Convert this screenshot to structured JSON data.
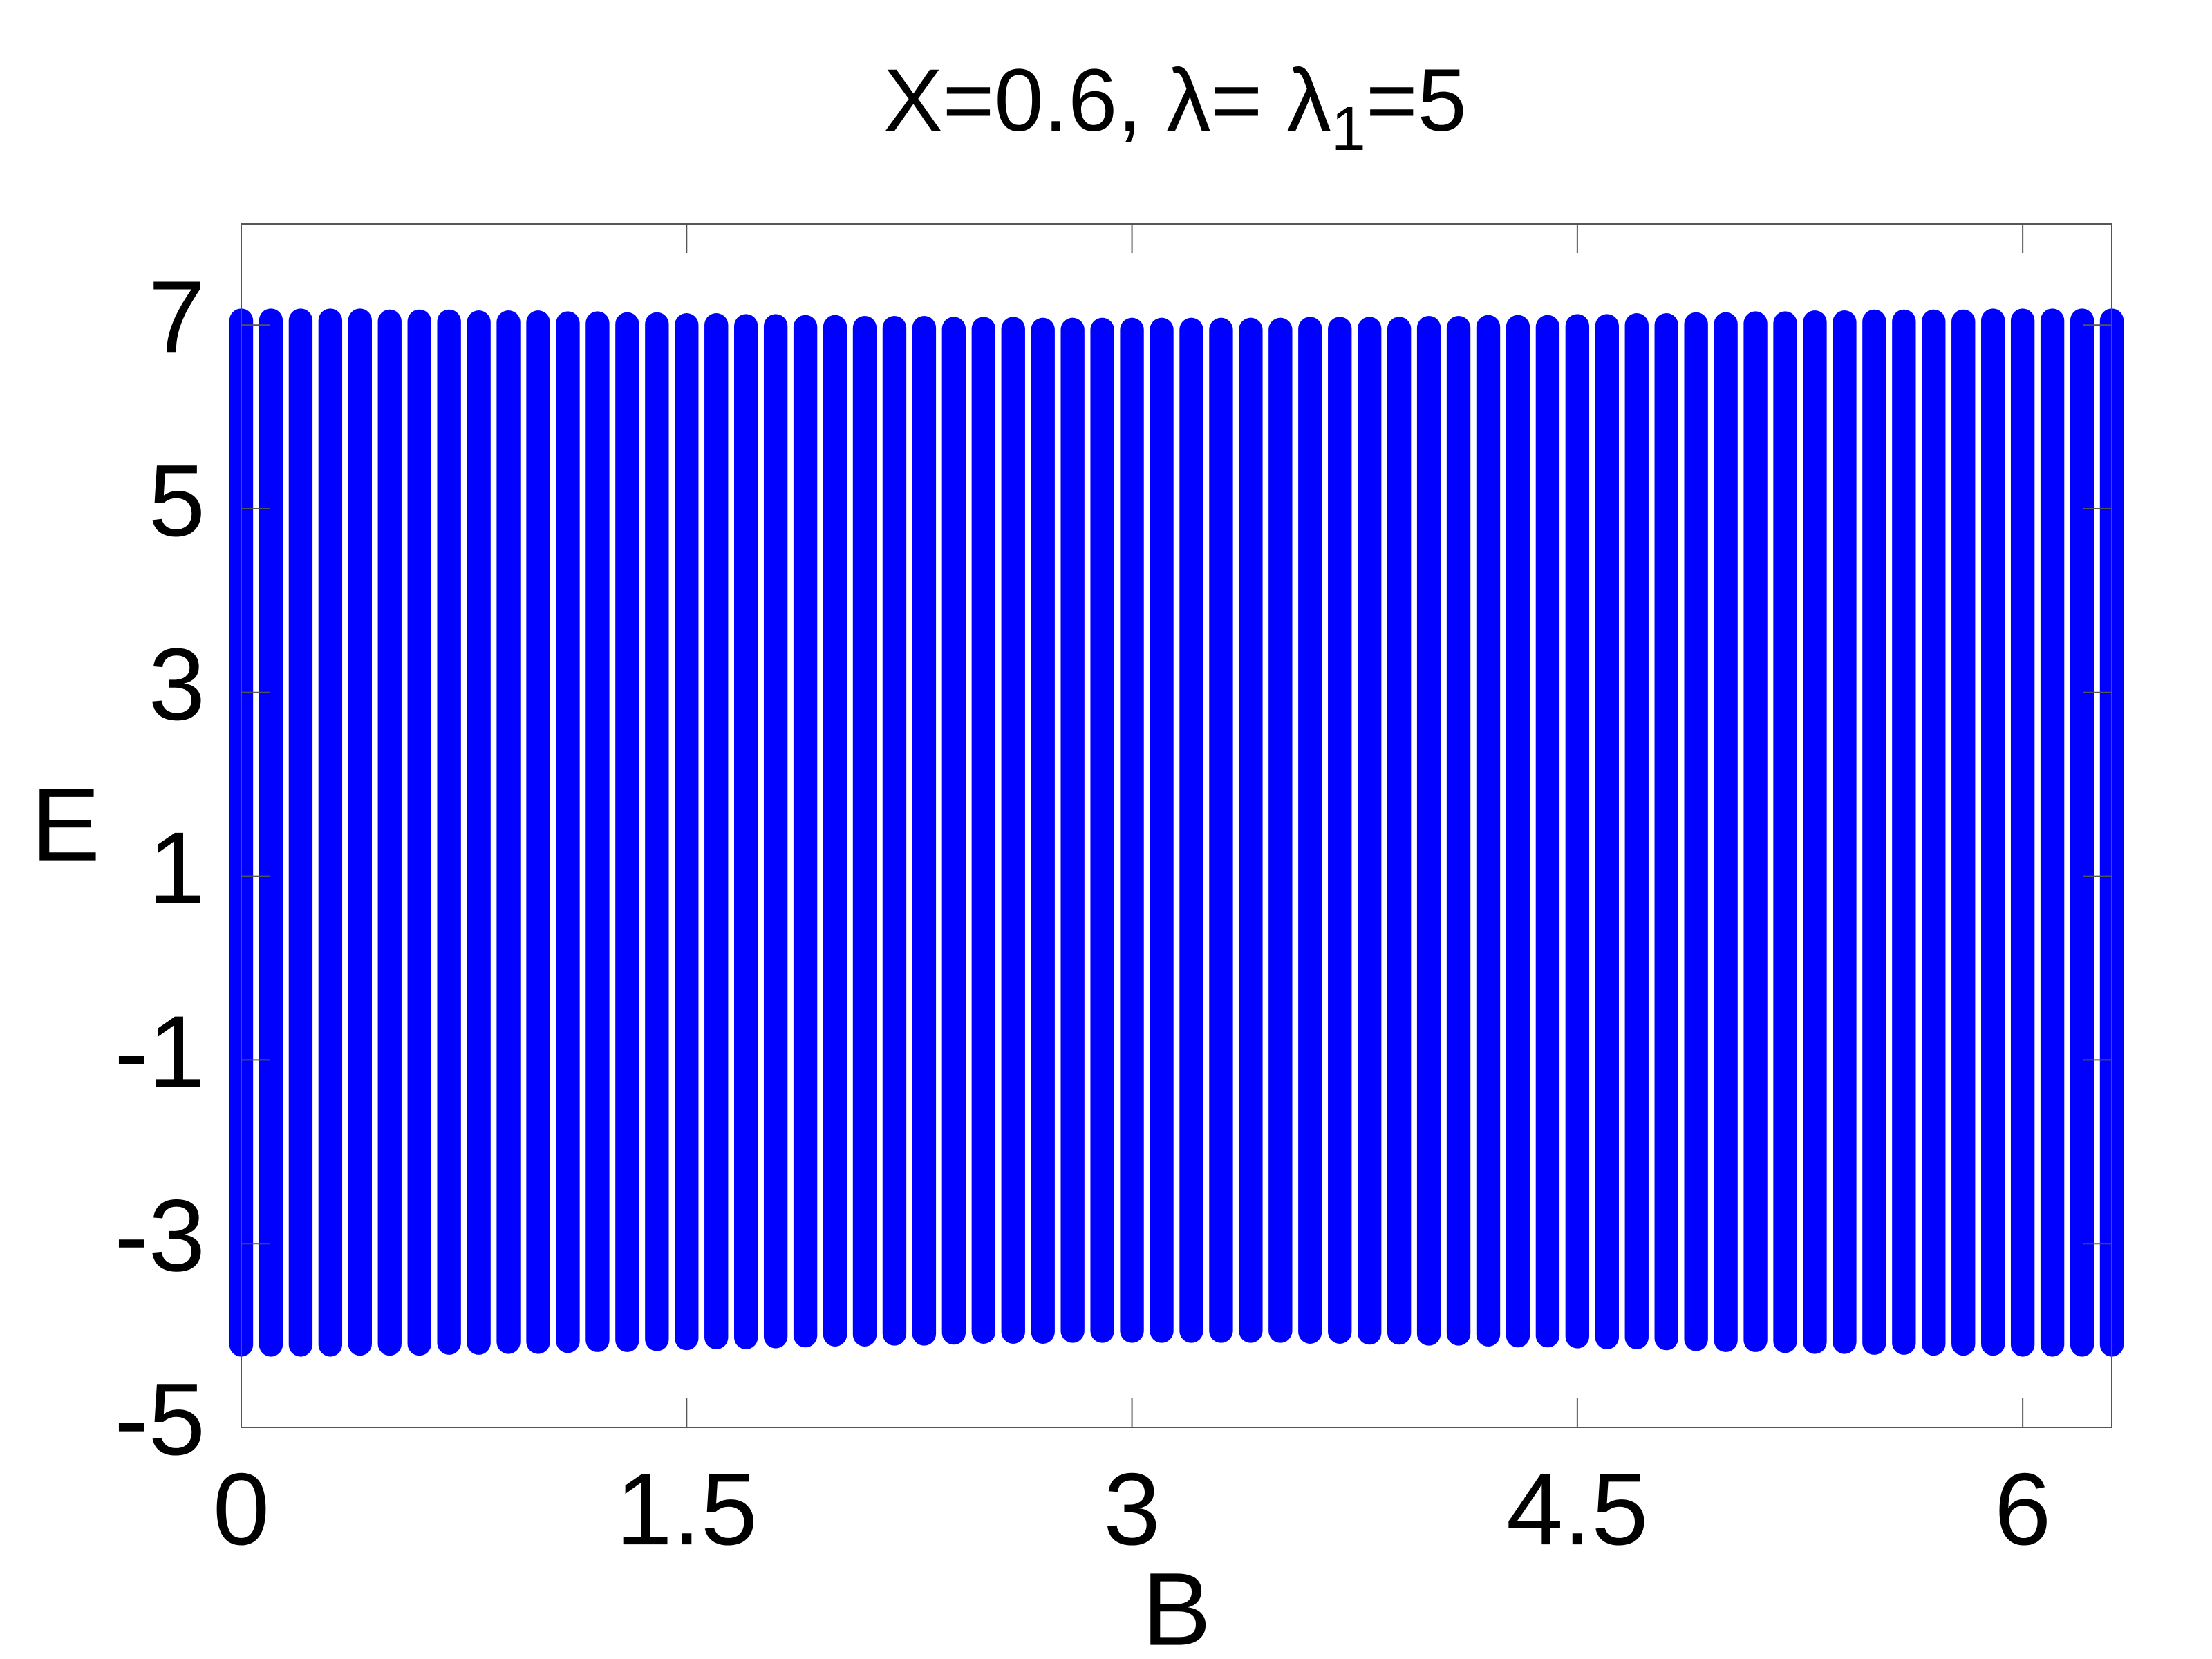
{
  "chart_data": {
    "type": "range",
    "title": [
      "X=0.6, λ= λ",
      "1",
      "=5"
    ],
    "x_label": "B",
    "y_label": "E",
    "color": "#0000ff",
    "xlim": [
      0,
      6.3
    ],
    "ylim": [
      -5,
      8.1
    ],
    "xticks": [
      0,
      1.5,
      3,
      4.5,
      6
    ],
    "yticks": [
      -5,
      -3,
      -1,
      1,
      3,
      5,
      7
    ],
    "x": [
      0,
      0.1,
      0.2,
      0.3,
      0.4,
      0.5,
      0.6,
      0.7,
      0.8,
      0.9,
      1.0,
      1.1,
      1.2,
      1.3,
      1.4,
      1.5,
      1.6,
      1.7,
      1.8,
      1.9,
      2.0,
      2.1,
      2.2,
      2.3,
      2.4,
      2.5,
      2.6,
      2.7,
      2.8,
      2.9,
      3.0,
      3.1,
      3.2,
      3.3,
      3.4,
      3.5,
      3.6,
      3.7,
      3.8,
      3.9,
      4.0,
      4.1,
      4.2,
      4.3,
      4.4,
      4.5,
      4.6,
      4.7,
      4.8,
      4.9,
      5.0,
      5.1,
      5.2,
      5.3,
      5.4,
      5.5,
      5.6,
      5.7,
      5.8,
      5.9,
      6.0,
      6.1,
      6.2,
      6.3
    ],
    "high": [
      7.05,
      7.05,
      7.05,
      7.05,
      7.05,
      7.04,
      7.04,
      7.04,
      7.03,
      7.03,
      7.03,
      7.02,
      7.02,
      7.01,
      7.01,
      7.0,
      7.0,
      6.99,
      6.99,
      6.98,
      6.98,
      6.97,
      6.97,
      6.97,
      6.96,
      6.96,
      6.96,
      6.95,
      6.95,
      6.95,
      6.95,
      6.95,
      6.95,
      6.95,
      6.95,
      6.95,
      6.96,
      6.96,
      6.96,
      6.96,
      6.97,
      6.97,
      6.98,
      6.98,
      6.98,
      6.99,
      6.99,
      7.0,
      7.0,
      7.01,
      7.01,
      7.02,
      7.02,
      7.03,
      7.03,
      7.04,
      7.04,
      7.04,
      7.04,
      7.05,
      7.05,
      7.05,
      7.05,
      7.05
    ],
    "low": [
      -4.1,
      -4.1,
      -4.1,
      -4.1,
      -4.09,
      -4.09,
      -4.09,
      -4.08,
      -4.08,
      -4.07,
      -4.07,
      -4.06,
      -4.05,
      -4.05,
      -4.04,
      -4.03,
      -4.02,
      -4.02,
      -4.01,
      -4.0,
      -3.99,
      -3.99,
      -3.98,
      -3.98,
      -3.97,
      -3.96,
      -3.96,
      -3.96,
      -3.95,
      -3.95,
      -3.95,
      -3.95,
      -3.95,
      -3.95,
      -3.95,
      -3.95,
      -3.96,
      -3.96,
      -3.97,
      -3.97,
      -3.98,
      -3.98,
      -3.99,
      -4.0,
      -4.0,
      -4.01,
      -4.02,
      -4.02,
      -4.03,
      -4.04,
      -4.05,
      -4.05,
      -4.06,
      -4.07,
      -4.07,
      -4.08,
      -4.08,
      -4.09,
      -4.09,
      -4.09,
      -4.1,
      -4.1,
      -4.1,
      -4.1
    ]
  }
}
